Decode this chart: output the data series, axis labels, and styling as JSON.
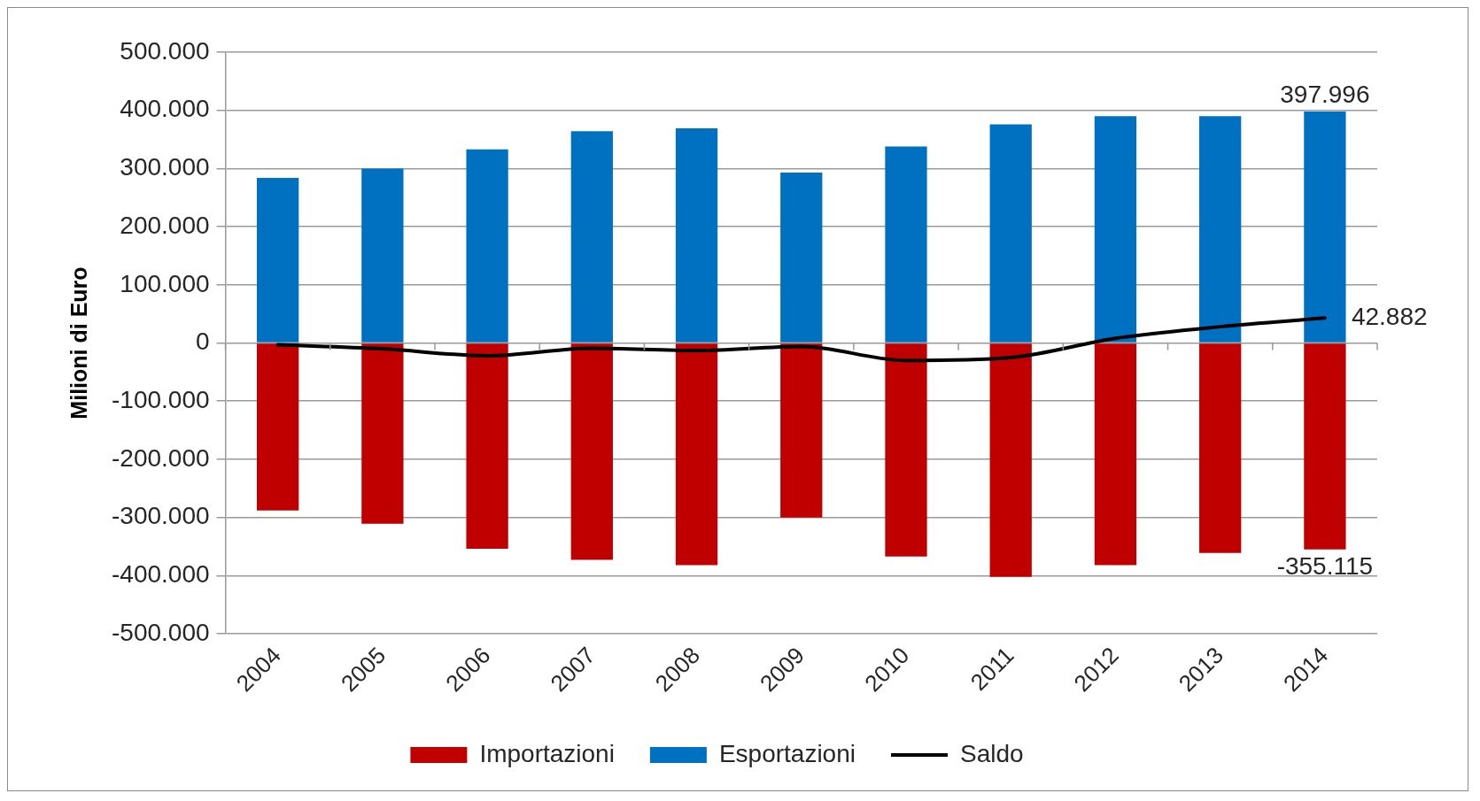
{
  "chart_data": {
    "type": "bar",
    "ylabel": "Milioni di Euro",
    "categories": [
      "2004",
      "2005",
      "2006",
      "2007",
      "2008",
      "2009",
      "2010",
      "2011",
      "2012",
      "2013",
      "2014"
    ],
    "series": [
      {
        "name": "Importazioni",
        "color": "#c00000",
        "values": [
          -288000,
          -311000,
          -354000,
          -373000,
          -382000,
          -300000,
          -367000,
          -402000,
          -382000,
          -361000,
          -355115
        ],
        "value_labels": [
          null,
          null,
          null,
          null,
          null,
          null,
          null,
          null,
          null,
          null,
          "-355.115"
        ]
      },
      {
        "name": "Esportazioni",
        "color": "#0070c0",
        "values": [
          284000,
          300000,
          333000,
          364000,
          369000,
          293000,
          338000,
          376000,
          390000,
          390000,
          397996
        ],
        "value_labels": [
          null,
          null,
          null,
          null,
          null,
          null,
          null,
          null,
          null,
          null,
          "397.996"
        ]
      },
      {
        "name": "Saldo",
        "type": "line",
        "color": "#000000",
        "values": [
          -3000,
          -10000,
          -22000,
          -9000,
          -13000,
          -6000,
          -30000,
          -25000,
          8000,
          28000,
          42882
        ],
        "value_labels": [
          null,
          null,
          null,
          null,
          null,
          null,
          null,
          null,
          null,
          null,
          "42.882"
        ]
      }
    ],
    "stacked": true,
    "ylim": [
      -500000,
      500000
    ],
    "yticks": [
      {
        "value": -500000,
        "label": "-500.000"
      },
      {
        "value": -400000,
        "label": "-400.000"
      },
      {
        "value": -300000,
        "label": "-300.000"
      },
      {
        "value": -200000,
        "label": "-200.000"
      },
      {
        "value": -100000,
        "label": "-100.000"
      },
      0,
      {
        "value": 100000,
        "label": "100.000"
      },
      {
        "value": 200000,
        "label": "200.000"
      },
      {
        "value": 300000,
        "label": "300.000"
      },
      {
        "value": 400000,
        "label": "400.000"
      },
      {
        "value": 500000,
        "label": "500.000"
      }
    ],
    "grid": "y",
    "legend": "bottom"
  }
}
